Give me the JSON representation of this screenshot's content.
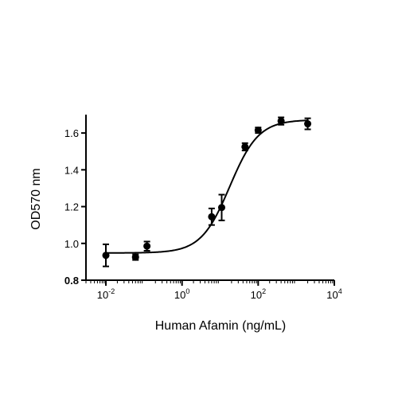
{
  "chart_data": {
    "type": "scatter",
    "title": "",
    "xlabel": "Human Afamin (ng/mL)",
    "ylabel": "OD570 nm",
    "x_scale": "log",
    "xlim": [
      0.003,
      10000
    ],
    "ylim": [
      0.8,
      1.7
    ],
    "x_ticks": [
      {
        "value": 0.01,
        "base": "10",
        "exp": "-2"
      },
      {
        "value": 1,
        "base": "10",
        "exp": "0"
      },
      {
        "value": 100,
        "base": "10",
        "exp": "2"
      },
      {
        "value": 10000,
        "base": "10",
        "exp": "4"
      }
    ],
    "y_ticks": [
      {
        "value": 0.8,
        "label": "0.8"
      },
      {
        "value": 1.0,
        "label": "1.0"
      },
      {
        "value": 1.2,
        "label": "1.2"
      },
      {
        "value": 1.4,
        "label": "1.4"
      },
      {
        "value": 1.6,
        "label": "1.6"
      }
    ],
    "points": [
      {
        "x": 0.01,
        "y": 0.935,
        "err": 0.06
      },
      {
        "x": 0.06,
        "y": 0.925,
        "err": 0.015
      },
      {
        "x": 0.12,
        "y": 0.985,
        "err": 0.025
      },
      {
        "x": 6.0,
        "y": 1.145,
        "err": 0.045
      },
      {
        "x": 11.0,
        "y": 1.195,
        "err": 0.07
      },
      {
        "x": 45.0,
        "y": 1.525,
        "err": 0.02
      },
      {
        "x": 100.0,
        "y": 1.615,
        "err": 0.015
      },
      {
        "x": 400.0,
        "y": 1.665,
        "err": 0.02
      },
      {
        "x": 2000.0,
        "y": 1.65,
        "err": 0.03
      }
    ],
    "fit_curve": {
      "model": "4PL",
      "bottom": 0.948,
      "top": 1.672,
      "ec50": 18,
      "hill": 1.15
    },
    "grid": false,
    "legend": "none"
  }
}
